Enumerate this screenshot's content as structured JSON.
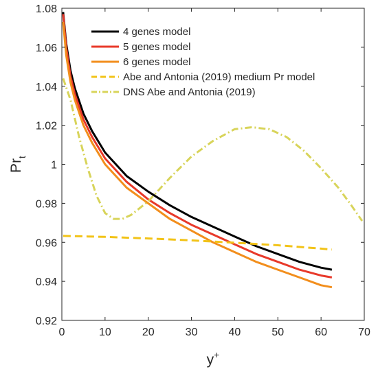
{
  "chart_data": {
    "type": "line",
    "title": "",
    "xlabel": "y",
    "xlabel_sup": "+",
    "ylabel": "Pr",
    "ylabel_sub": "t",
    "xlim": [
      0,
      70
    ],
    "ylim": [
      0.92,
      1.08
    ],
    "xticks": [
      0,
      10,
      20,
      30,
      40,
      50,
      60,
      70
    ],
    "xtick_labels": [
      "0",
      "10",
      "20",
      "30",
      "40",
      "50",
      "60",
      "70"
    ],
    "yticks": [
      0.92,
      0.94,
      0.96,
      0.98,
      1.0,
      1.02,
      1.04,
      1.06,
      1.08
    ],
    "ytick_labels": [
      "0.92",
      "0.94",
      "0.96",
      "0.98",
      "1",
      "1.02",
      "1.04",
      "1.06",
      "1.08"
    ],
    "grid": false,
    "legend_position": "top-right",
    "series": [
      {
        "name": "4 genes model",
        "color": "#000000",
        "style": "solid",
        "x": [
          0.3,
          1,
          2,
          3,
          5,
          7,
          10,
          15,
          20,
          25,
          30,
          35,
          40,
          45,
          50,
          55,
          60,
          62.5
        ],
        "y": [
          1.078,
          1.062,
          1.048,
          1.039,
          1.026,
          1.017,
          1.006,
          0.994,
          0.986,
          0.979,
          0.973,
          0.968,
          0.963,
          0.958,
          0.954,
          0.95,
          0.947,
          0.946
        ]
      },
      {
        "name": "5 genes model",
        "color": "#e8392a",
        "style": "solid",
        "x": [
          0.3,
          1,
          2,
          3,
          5,
          7,
          10,
          15,
          20,
          25,
          30,
          35,
          40,
          45,
          50,
          55,
          60,
          62.5
        ],
        "y": [
          1.077,
          1.06,
          1.045,
          1.036,
          1.023,
          1.014,
          1.003,
          0.991,
          0.982,
          0.975,
          0.969,
          0.964,
          0.959,
          0.954,
          0.95,
          0.946,
          0.943,
          0.942
        ]
      },
      {
        "name": "6 genes model",
        "color": "#f28e1c",
        "style": "solid",
        "x": [
          0.3,
          1,
          2,
          3,
          5,
          7,
          10,
          15,
          20,
          25,
          30,
          35,
          40,
          45,
          50,
          55,
          60,
          62.5
        ],
        "y": [
          1.073,
          1.056,
          1.042,
          1.033,
          1.02,
          1.011,
          1.0,
          0.988,
          0.98,
          0.972,
          0.966,
          0.96,
          0.955,
          0.95,
          0.946,
          0.942,
          0.938,
          0.937
        ]
      },
      {
        "name": "Abe and Antonia (2019) medium Pr model",
        "color": "#f2c318",
        "style": "dashed",
        "x": [
          0.3,
          10,
          20,
          30,
          40,
          50,
          60,
          62.5
        ],
        "y": [
          0.9633,
          0.9628,
          0.962,
          0.961,
          0.9598,
          0.9585,
          0.9568,
          0.9563
        ]
      },
      {
        "name": "DNS Abe and Antonia (2019)",
        "color": "#d8d45a",
        "style": "dashdot",
        "x": [
          0.3,
          2,
          4,
          6,
          8,
          10,
          12,
          14,
          16,
          20,
          25,
          30,
          35,
          40,
          44,
          48,
          52,
          56,
          60,
          64,
          67,
          69.5
        ],
        "y": [
          1.044,
          1.033,
          1.014,
          0.998,
          0.984,
          0.975,
          0.972,
          0.972,
          0.974,
          0.981,
          0.993,
          1.004,
          1.012,
          1.018,
          1.019,
          1.018,
          1.014,
          1.007,
          0.998,
          0.988,
          0.979,
          0.971
        ]
      }
    ]
  }
}
